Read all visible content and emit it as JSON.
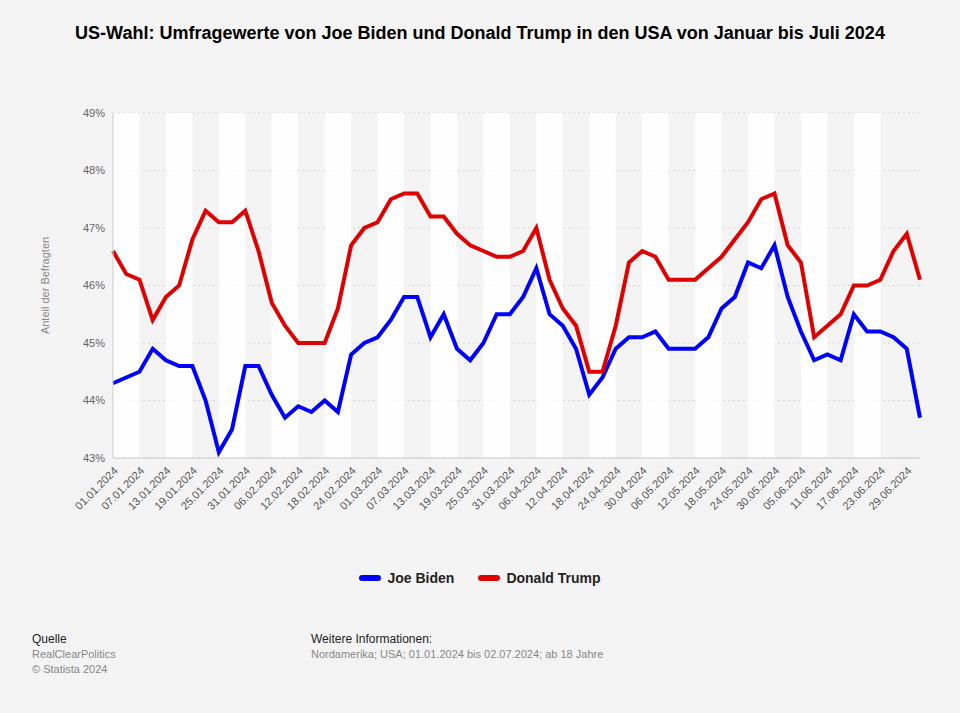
{
  "chart_data": {
    "type": "line",
    "title": "US-Wahl: Umfragewerte von Joe Biden und Donald Trump in den USA von Januar bis Juli 2024",
    "y_label": "Anteil der Befragten",
    "categories": [
      "01.01.2024",
      null,
      "07.01.2024",
      null,
      "13.01.2024",
      null,
      "19.01.2024",
      null,
      "25.01.2024",
      null,
      "31.01.2024",
      null,
      "06.02.2024",
      null,
      "12.02.2024",
      null,
      "18.02.2024",
      null,
      "24.02.2024",
      null,
      "01.03.2024",
      null,
      "07.03.2024",
      null,
      "13.03.2024",
      null,
      "19.03.2024",
      null,
      "25.03.2024",
      null,
      "31.03.2024",
      null,
      "06.04.2024",
      null,
      "12.04.2024",
      null,
      "18.04.2024",
      null,
      "24.04.2024",
      null,
      "30.04.2024",
      null,
      "06.05.2024",
      null,
      "12.05.2024",
      null,
      "18.05.2024",
      null,
      "24.05.2024",
      null,
      "30.05.2024",
      null,
      "05.06.2024",
      null,
      "11.06.2024",
      null,
      "17.06.2024",
      null,
      "23.06.2024",
      null,
      "29.06.2024",
      null
    ],
    "series": [
      {
        "name": "Joe Biden",
        "color": "#0000ff",
        "values": [
          44.3,
          44.4,
          44.5,
          44.9,
          44.7,
          44.6,
          44.6,
          44.0,
          43.1,
          43.5,
          44.6,
          44.6,
          44.1,
          43.7,
          43.9,
          43.8,
          44.0,
          43.8,
          44.8,
          45.0,
          45.1,
          45.4,
          45.8,
          45.8,
          45.1,
          45.5,
          44.9,
          44.7,
          45.0,
          45.5,
          45.5,
          45.8,
          46.3,
          45.5,
          45.3,
          44.9,
          44.1,
          44.4,
          44.9,
          45.1,
          45.1,
          45.2,
          44.9,
          44.9,
          44.9,
          45.1,
          45.6,
          45.8,
          46.4,
          46.3,
          46.7,
          45.8,
          45.2,
          44.7,
          44.8,
          44.7,
          45.5,
          45.2,
          45.2,
          45.1,
          44.9,
          43.7
        ]
      },
      {
        "name": "Donald Trump",
        "color": "#e00000",
        "values": [
          46.6,
          46.2,
          46.1,
          45.4,
          45.8,
          46.0,
          46.8,
          47.3,
          47.1,
          47.1,
          47.3,
          46.6,
          45.7,
          45.3,
          45.0,
          45.0,
          45.0,
          45.6,
          46.7,
          47.0,
          47.1,
          47.5,
          47.6,
          47.6,
          47.2,
          47.2,
          46.9,
          46.7,
          46.6,
          46.5,
          46.5,
          46.6,
          47.0,
          46.1,
          45.6,
          45.3,
          44.5,
          44.5,
          45.3,
          46.4,
          46.6,
          46.5,
          46.1,
          46.1,
          46.1,
          46.3,
          46.5,
          46.8,
          47.1,
          47.5,
          47.6,
          46.7,
          46.4,
          45.1,
          45.3,
          45.5,
          46.0,
          46.0,
          46.1,
          46.6,
          46.9,
          46.1
        ]
      }
    ],
    "ylim": [
      43,
      49
    ],
    "yticks": [
      {
        "value": 43,
        "label": "43%"
      },
      {
        "value": 44,
        "label": "44%"
      },
      {
        "value": 45,
        "label": "45%"
      },
      {
        "value": 46,
        "label": "46%"
      },
      {
        "value": 47,
        "label": "47%"
      },
      {
        "value": 48,
        "label": "48%"
      },
      {
        "value": 49,
        "label": "49%"
      }
    ],
    "grid": true,
    "legend": "bottom",
    "source_label": "Quelle",
    "source": "RealClearPolitics",
    "copyright": "© Statista 2024",
    "info_label": "Weitere Informationen:",
    "info": "Nordamerika; USA; 01.01.2024 bis 02.07.2024; ab 18 Jahre"
  }
}
